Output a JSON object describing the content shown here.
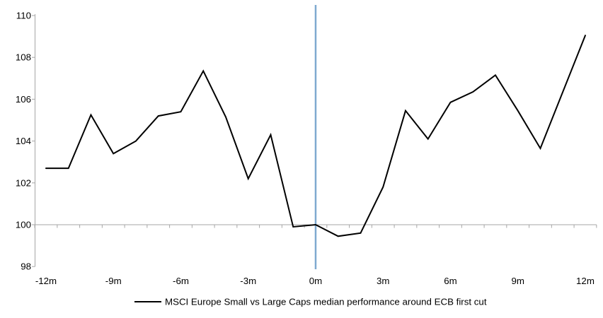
{
  "chart_data": {
    "type": "line",
    "title": "",
    "xlabel": "",
    "ylabel": "",
    "categories": [
      "-12m",
      "-11m",
      "-10m",
      "-9m",
      "-8m",
      "-7m",
      "-6m",
      "-5m",
      "-4m",
      "-3m",
      "-2m",
      "-1m",
      "0m",
      "1m",
      "2m",
      "3m",
      "4m",
      "5m",
      "6m",
      "7m",
      "8m",
      "9m",
      "10m",
      "11m",
      "12m"
    ],
    "series": [
      {
        "name": "MSCI Europe Small vs Large Caps median performance around ECB first cut",
        "values": [
          102.7,
          102.7,
          105.25,
          103.4,
          104.0,
          105.2,
          105.4,
          107.35,
          105.15,
          102.2,
          104.3,
          99.9,
          100.0,
          99.45,
          99.6,
          101.8,
          105.45,
          104.1,
          105.85,
          106.35,
          107.15,
          105.45,
          103.65,
          106.35,
          109.05
        ]
      }
    ],
    "x_tick_labels_shown": [
      "-12m",
      "-9m",
      "-6m",
      "-3m",
      "0m",
      "3m",
      "6m",
      "9m",
      "12m"
    ],
    "x_tick_label_every": 3,
    "y_ticks": [
      98,
      100,
      102,
      104,
      106,
      108,
      110
    ],
    "ylim": [
      98,
      110
    ],
    "x_axis_crosses_at": 100,
    "event_line_at": "0m",
    "legend": "MSCI Europe Small vs Large Caps median performance around ECB first cut",
    "legend_position": "bottom-center",
    "grid": "off",
    "colors": {
      "series": "#000000",
      "event_line": "#7FA9D0",
      "axis": "#A6A6A6",
      "text": "#000000",
      "background": "#FFFFFF"
    }
  }
}
